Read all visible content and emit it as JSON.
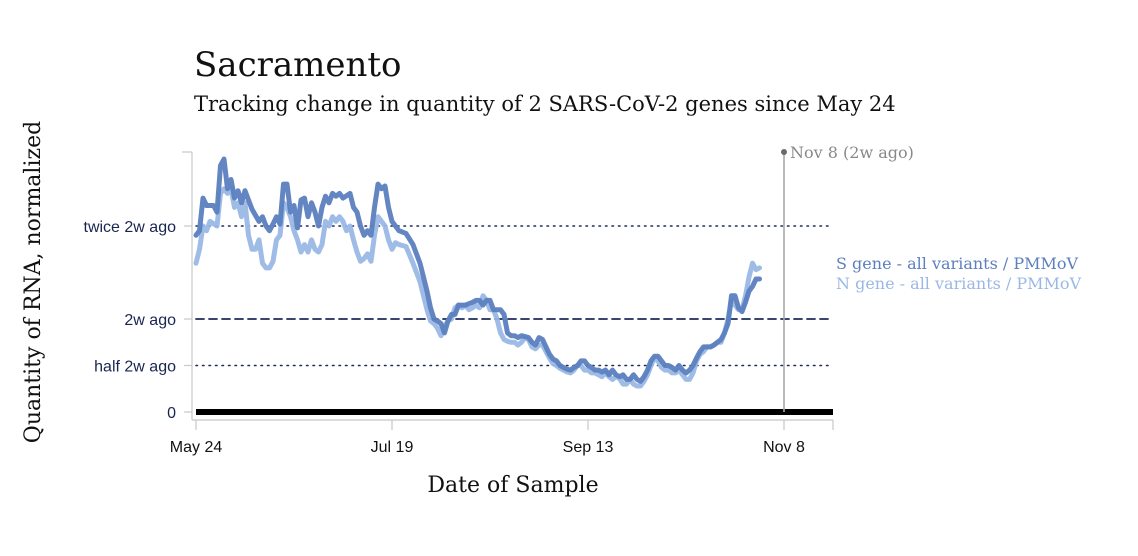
{
  "chart_data": {
    "type": "line",
    "title": "Sacramento",
    "subtitle": "Tracking change in quantity of 2 SARS-CoV-2 genes since May 24",
    "xlabel": "Date of Sample",
    "ylabel": "Quantity of RNA, normalized",
    "x_ticks": [
      {
        "label": "May 24",
        "day": 0
      },
      {
        "label": "Jul 19",
        "day": 56
      },
      {
        "label": "Sep 13",
        "day": 112
      },
      {
        "label": "Nov 8",
        "day": 168
      }
    ],
    "x_range_days": [
      0,
      182
    ],
    "y_reference_lines": [
      {
        "label": "twice 2w ago",
        "value": 2,
        "style": "dotted"
      },
      {
        "label": "2w ago",
        "value": 1,
        "style": "dashed"
      },
      {
        "label": "half 2w ago",
        "value": 0.5,
        "style": "dotted"
      },
      {
        "label": "0",
        "value": 0,
        "style": "baseline"
      }
    ],
    "ylim": [
      0,
      2.8
    ],
    "annotation": {
      "label": "Nov 8 (2w ago)",
      "day": 168
    },
    "colors": {
      "s_gene": "#5b7fbf",
      "n_gene": "#9ab8e6",
      "reference": "#1f2a5c",
      "axis_text": "#1a2450"
    },
    "series": [
      {
        "name": "S gene - all variants / PMMoV",
        "key": "s_gene",
        "points": [
          [
            0,
            1.9
          ],
          [
            1,
            1.95
          ],
          [
            2,
            2.3
          ],
          [
            3,
            2.22
          ],
          [
            5,
            2.22
          ],
          [
            6,
            2.15
          ],
          [
            7,
            2.65
          ],
          [
            8,
            2.72
          ],
          [
            9,
            2.4
          ],
          [
            10,
            2.5
          ],
          [
            11,
            2.3
          ],
          [
            12,
            2.38
          ],
          [
            13,
            2.25
          ],
          [
            14,
            2.38
          ],
          [
            16,
            2.18
          ],
          [
            18,
            2.05
          ],
          [
            19,
            2.1
          ],
          [
            20,
            2.0
          ],
          [
            21,
            1.95
          ],
          [
            22,
            2.02
          ],
          [
            23,
            2.1
          ],
          [
            24,
            2.02
          ],
          [
            25,
            2.45
          ],
          [
            26,
            2.45
          ],
          [
            27,
            2.15
          ],
          [
            28,
            2.22
          ],
          [
            29,
            1.98
          ],
          [
            30,
            2.28
          ],
          [
            31,
            2.3
          ],
          [
            32,
            2.1
          ],
          [
            33,
            2.25
          ],
          [
            34,
            2.15
          ],
          [
            35,
            2.0
          ],
          [
            36,
            2.2
          ],
          [
            37,
            2.32
          ],
          [
            38,
            2.25
          ],
          [
            39,
            2.35
          ],
          [
            40,
            2.32
          ],
          [
            41,
            2.35
          ],
          [
            42,
            2.3
          ],
          [
            44,
            2.35
          ],
          [
            45,
            2.2
          ],
          [
            46,
            2.15
          ],
          [
            47,
            2.0
          ],
          [
            48,
            1.9
          ],
          [
            49,
            1.95
          ],
          [
            50,
            1.9
          ],
          [
            51,
            2.2
          ],
          [
            52,
            2.45
          ],
          [
            53,
            2.4
          ],
          [
            54,
            2.43
          ],
          [
            55,
            2.2
          ],
          [
            56,
            2.05
          ],
          [
            58,
            1.95
          ],
          [
            60,
            1.92
          ],
          [
            62,
            1.8
          ],
          [
            64,
            1.6
          ],
          [
            66,
            1.3
          ],
          [
            67,
            1.12
          ],
          [
            68,
            1.0
          ],
          [
            69,
            0.98
          ],
          [
            70,
            0.95
          ],
          [
            71,
            0.85
          ],
          [
            72,
            0.98
          ],
          [
            73,
            1.05
          ],
          [
            74,
            1.05
          ],
          [
            75,
            1.15
          ],
          [
            77,
            1.15
          ],
          [
            79,
            1.18
          ],
          [
            80,
            1.2
          ],
          [
            81,
            1.2
          ],
          [
            82,
            1.15
          ],
          [
            83,
            1.2
          ],
          [
            84,
            1.2
          ],
          [
            85,
            1.1
          ],
          [
            86,
            1.1
          ],
          [
            87,
            1.1
          ],
          [
            88,
            1.05
          ],
          [
            89,
            0.85
          ],
          [
            90,
            0.82
          ],
          [
            91,
            0.82
          ],
          [
            92,
            0.8
          ],
          [
            93,
            0.82
          ],
          [
            95,
            0.8
          ],
          [
            96,
            0.75
          ],
          [
            97,
            0.72
          ],
          [
            98,
            0.8
          ],
          [
            99,
            0.78
          ],
          [
            100,
            0.7
          ],
          [
            101,
            0.62
          ],
          [
            102,
            0.57
          ],
          [
            103,
            0.55
          ],
          [
            104,
            0.5
          ],
          [
            105,
            0.48
          ],
          [
            106,
            0.46
          ],
          [
            107,
            0.45
          ],
          [
            108,
            0.48
          ],
          [
            109,
            0.5
          ],
          [
            110,
            0.55
          ],
          [
            111,
            0.55
          ],
          [
            112,
            0.5
          ],
          [
            113,
            0.48
          ],
          [
            114,
            0.45
          ],
          [
            115,
            0.45
          ],
          [
            116,
            0.43
          ],
          [
            117,
            0.45
          ],
          [
            118,
            0.4
          ],
          [
            119,
            0.45
          ],
          [
            120,
            0.4
          ],
          [
            121,
            0.38
          ],
          [
            122,
            0.4
          ],
          [
            123,
            0.35
          ],
          [
            124,
            0.35
          ],
          [
            125,
            0.4
          ],
          [
            126,
            0.35
          ],
          [
            127,
            0.33
          ],
          [
            128,
            0.38
          ],
          [
            129,
            0.45
          ],
          [
            130,
            0.55
          ],
          [
            131,
            0.6
          ],
          [
            132,
            0.6
          ],
          [
            133,
            0.55
          ],
          [
            134,
            0.5
          ],
          [
            135,
            0.5
          ],
          [
            136,
            0.48
          ],
          [
            137,
            0.45
          ],
          [
            138,
            0.5
          ],
          [
            139,
            0.45
          ],
          [
            140,
            0.42
          ],
          [
            141,
            0.45
          ],
          [
            142,
            0.5
          ],
          [
            143,
            0.58
          ],
          [
            144,
            0.65
          ],
          [
            145,
            0.7
          ],
          [
            146,
            0.7
          ],
          [
            147,
            0.7
          ],
          [
            148,
            0.72
          ],
          [
            149,
            0.75
          ],
          [
            150,
            0.78
          ],
          [
            151,
            0.85
          ],
          [
            152,
            0.95
          ],
          [
            153,
            1.25
          ],
          [
            154,
            1.25
          ],
          [
            155,
            1.12
          ],
          [
            156,
            1.08
          ],
          [
            157,
            1.18
          ],
          [
            158,
            1.3
          ],
          [
            159,
            1.35
          ],
          [
            160,
            1.43
          ],
          [
            161,
            1.43
          ]
        ]
      },
      {
        "name": "N gene - all variants / PMMoV",
        "key": "n_gene",
        "points": [
          [
            0,
            1.6
          ],
          [
            1,
            1.75
          ],
          [
            2,
            2.0
          ],
          [
            3,
            1.95
          ],
          [
            4,
            2.05
          ],
          [
            6,
            2.0
          ],
          [
            7,
            2.35
          ],
          [
            8,
            2.4
          ],
          [
            9,
            2.35
          ],
          [
            10,
            2.4
          ],
          [
            11,
            2.2
          ],
          [
            12,
            2.25
          ],
          [
            13,
            2.1
          ],
          [
            14,
            2.25
          ],
          [
            15,
            1.9
          ],
          [
            16,
            1.75
          ],
          [
            17,
            1.75
          ],
          [
            18,
            1.85
          ],
          [
            19,
            1.6
          ],
          [
            20,
            1.55
          ],
          [
            21,
            1.55
          ],
          [
            22,
            1.62
          ],
          [
            23,
            1.85
          ],
          [
            24,
            1.9
          ],
          [
            25,
            2.25
          ],
          [
            26,
            2.2
          ],
          [
            27,
            2.1
          ],
          [
            28,
            1.95
          ],
          [
            29,
            1.85
          ],
          [
            30,
            1.72
          ],
          [
            31,
            1.8
          ],
          [
            32,
            1.72
          ],
          [
            33,
            1.85
          ],
          [
            34,
            1.75
          ],
          [
            35,
            1.72
          ],
          [
            36,
            1.8
          ],
          [
            37,
            2.05
          ],
          [
            38,
            2.0
          ],
          [
            39,
            2.1
          ],
          [
            40,
            2.05
          ],
          [
            41,
            2.1
          ],
          [
            42,
            2.05
          ],
          [
            43,
            1.95
          ],
          [
            44,
            2.0
          ],
          [
            45,
            1.85
          ],
          [
            46,
            1.72
          ],
          [
            47,
            1.62
          ],
          [
            48,
            1.65
          ],
          [
            49,
            1.7
          ],
          [
            50,
            1.62
          ],
          [
            51,
            1.9
          ],
          [
            52,
            2.1
          ],
          [
            53,
            2.05
          ],
          [
            54,
            2.0
          ],
          [
            55,
            1.85
          ],
          [
            56,
            1.75
          ],
          [
            57,
            1.82
          ],
          [
            58,
            1.8
          ],
          [
            60,
            1.78
          ],
          [
            62,
            1.6
          ],
          [
            64,
            1.4
          ],
          [
            66,
            1.1
          ],
          [
            67,
            0.98
          ],
          [
            68,
            0.95
          ],
          [
            69,
            0.9
          ],
          [
            70,
            0.82
          ],
          [
            71,
            0.92
          ],
          [
            72,
            0.98
          ],
          [
            73,
            1.0
          ],
          [
            74,
            1.12
          ],
          [
            75,
            1.15
          ],
          [
            76,
            1.12
          ],
          [
            77,
            1.15
          ],
          [
            78,
            1.1
          ],
          [
            79,
            1.12
          ],
          [
            80,
            1.15
          ],
          [
            81,
            1.12
          ],
          [
            82,
            1.25
          ],
          [
            83,
            1.2
          ],
          [
            84,
            1.1
          ],
          [
            85,
            1.1
          ],
          [
            86,
            1.0
          ],
          [
            87,
            0.85
          ],
          [
            88,
            0.78
          ],
          [
            89,
            0.76
          ],
          [
            90,
            0.75
          ],
          [
            91,
            0.75
          ],
          [
            92,
            0.72
          ],
          [
            93,
            0.75
          ],
          [
            94,
            0.8
          ],
          [
            95,
            0.78
          ],
          [
            96,
            0.7
          ],
          [
            97,
            0.68
          ],
          [
            98,
            0.72
          ],
          [
            99,
            0.72
          ],
          [
            100,
            0.65
          ],
          [
            101,
            0.58
          ],
          [
            102,
            0.52
          ],
          [
            103,
            0.5
          ],
          [
            104,
            0.47
          ],
          [
            105,
            0.45
          ],
          [
            106,
            0.43
          ],
          [
            107,
            0.42
          ],
          [
            108,
            0.45
          ],
          [
            109,
            0.5
          ],
          [
            110,
            0.5
          ],
          [
            111,
            0.45
          ],
          [
            112,
            0.45
          ],
          [
            113,
            0.42
          ],
          [
            114,
            0.42
          ],
          [
            115,
            0.4
          ],
          [
            116,
            0.38
          ],
          [
            117,
            0.42
          ],
          [
            118,
            0.38
          ],
          [
            119,
            0.35
          ],
          [
            120,
            0.38
          ],
          [
            121,
            0.36
          ],
          [
            122,
            0.3
          ],
          [
            123,
            0.3
          ],
          [
            124,
            0.35
          ],
          [
            125,
            0.3
          ],
          [
            126,
            0.28
          ],
          [
            127,
            0.28
          ],
          [
            128,
            0.33
          ],
          [
            129,
            0.4
          ],
          [
            130,
            0.5
          ],
          [
            131,
            0.58
          ],
          [
            132,
            0.55
          ],
          [
            133,
            0.48
          ],
          [
            134,
            0.45
          ],
          [
            135,
            0.45
          ],
          [
            136,
            0.42
          ],
          [
            137,
            0.42
          ],
          [
            138,
            0.45
          ],
          [
            139,
            0.4
          ],
          [
            140,
            0.35
          ],
          [
            141,
            0.35
          ],
          [
            142,
            0.42
          ],
          [
            143,
            0.55
          ],
          [
            144,
            0.62
          ],
          [
            145,
            0.65
          ],
          [
            146,
            0.7
          ],
          [
            147,
            0.7
          ],
          [
            148,
            0.72
          ],
          [
            149,
            0.75
          ],
          [
            150,
            0.75
          ],
          [
            151,
            0.85
          ],
          [
            152,
            1.0
          ],
          [
            153,
            1.2
          ],
          [
            154,
            1.15
          ],
          [
            155,
            1.1
          ],
          [
            156,
            1.1
          ],
          [
            157,
            1.25
          ],
          [
            158,
            1.45
          ],
          [
            159,
            1.6
          ],
          [
            160,
            1.53
          ],
          [
            161,
            1.55
          ]
        ]
      }
    ]
  }
}
